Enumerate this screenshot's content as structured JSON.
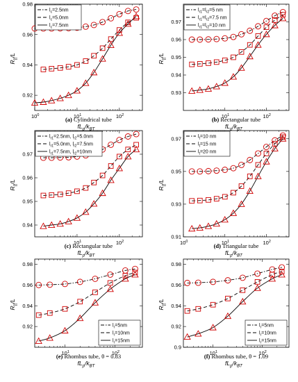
{
  "colors": {
    "marker": "#d00000",
    "curve": "#000000",
    "axis": "#000000"
  },
  "chart_data": [
    {
      "type": "line",
      "title": "",
      "caption_tag": "(a)",
      "caption_text": "Cylindrical tube",
      "xlabel": "fL_p/k_BT",
      "ylabel": "R_||/L",
      "xscale": "log",
      "xlim": [
        1,
        350
      ],
      "ylim": [
        0.91,
        0.98
      ],
      "yticks": [
        0.92,
        0.94,
        0.96,
        0.98
      ],
      "yticks_labels": [
        "0.92",
        "0.94",
        "0.96",
        "0.98"
      ],
      "xticks": [
        1,
        10,
        100
      ],
      "xticks_labels": [
        "10^0",
        "10^1",
        "10^2"
      ],
      "legend_position": "top-left",
      "series": [
        {
          "legend": "l_c=2.5nm",
          "line": "dashdot",
          "marker": "circle",
          "x": [
            1.0,
            1.6,
            2.5,
            4,
            6.3,
            10,
            16,
            25,
            40,
            63,
            100,
            160,
            250
          ],
          "y": [
            0.964,
            0.964,
            0.964,
            0.9641,
            0.9642,
            0.9645,
            0.9652,
            0.9663,
            0.9682,
            0.9707,
            0.9734,
            0.9755,
            0.9765
          ]
        },
        {
          "legend": "l_c=5.0nm",
          "line": "dashed",
          "marker": "square",
          "x": [
            1.6,
            2.5,
            4,
            6.3,
            10,
            16,
            25,
            40,
            63,
            100,
            160,
            250
          ],
          "y": [
            0.937,
            0.9375,
            0.938,
            0.9388,
            0.94,
            0.9425,
            0.946,
            0.951,
            0.957,
            0.963,
            0.968,
            0.971
          ]
        },
        {
          "legend": "l_c=7.5nm",
          "line": "solid",
          "marker": "triangle",
          "x": [
            1.0,
            1.6,
            2.5,
            4,
            6.3,
            10,
            16,
            25,
            40,
            63,
            100,
            160,
            250
          ],
          "y": [
            0.915,
            0.9155,
            0.9165,
            0.918,
            0.92,
            0.923,
            0.928,
            0.935,
            0.944,
            0.953,
            0.961,
            0.967,
            0.972
          ]
        }
      ]
    },
    {
      "type": "line",
      "title": "",
      "caption_tag": "(b)",
      "caption_text": "Rectangular tube",
      "xlabel": "fL_p/k_BT",
      "ylabel": "R_||/L",
      "xscale": "log",
      "xlim": [
        1,
        350
      ],
      "ylim": [
        0.92,
        0.98
      ],
      "yticks": [
        0.93,
        0.94,
        0.95,
        0.96,
        0.97
      ],
      "yticks_labels": [
        "0.93",
        "0.94",
        "0.95",
        "0.96",
        "0.97"
      ],
      "xticks": [
        10,
        100
      ],
      "xticks_labels": [
        "10^1",
        "10^2"
      ],
      "legend_position": "top-left",
      "series": [
        {
          "legend": "l_r1=l_r2=5 nm",
          "line": "dashdot",
          "marker": "circle",
          "x": [
            1.6,
            2.5,
            4,
            6.3,
            10,
            16,
            25,
            40,
            63,
            100,
            160,
            250
          ],
          "y": [
            0.96,
            0.96,
            0.9601,
            0.9603,
            0.9607,
            0.9615,
            0.963,
            0.965,
            0.9675,
            0.9705,
            0.9735,
            0.9755
          ]
        },
        {
          "legend": "l_r1=l_r2=7.5 nm",
          "line": "dashed",
          "marker": "square",
          "x": [
            1.6,
            2.5,
            4,
            6.3,
            10,
            16,
            25,
            40,
            63,
            100,
            160,
            250
          ],
          "y": [
            0.946,
            0.9463,
            0.9467,
            0.9473,
            0.9483,
            0.95,
            0.953,
            0.957,
            0.962,
            0.967,
            0.971,
            0.974
          ]
        },
        {
          "legend": "l_r1=l_r2=10 nm",
          "line": "solid",
          "marker": "triangle",
          "x": [
            1.6,
            2.5,
            4,
            6.3,
            10,
            16,
            25,
            40,
            63,
            100,
            160,
            250
          ],
          "y": [
            0.931,
            0.9315,
            0.9322,
            0.9335,
            0.9355,
            0.939,
            0.944,
            0.9505,
            0.957,
            0.963,
            0.968,
            0.972
          ]
        }
      ]
    },
    {
      "type": "line",
      "title": "",
      "caption_tag": "(c)",
      "caption_text": "Rectangular tube",
      "xlabel": "fL_p/k_BT",
      "ylabel": "R_||/L",
      "xscale": "log",
      "xlim": [
        1,
        350
      ],
      "ylim": [
        0.935,
        0.98
      ],
      "yticks": [
        0.94,
        0.95,
        0.96,
        0.97
      ],
      "yticks_labels": [
        "0.94",
        "0.95",
        "0.96",
        "0.97"
      ],
      "xticks": [
        10,
        100
      ],
      "xticks_labels": [
        "10^1",
        "10^2"
      ],
      "legend_position": "top-left",
      "series": [
        {
          "legend": "l_r1=2.5nm, l_r2=5.0nm",
          "line": "dashdot",
          "marker": "circle",
          "x": [
            1.6,
            2.5,
            4,
            6.3,
            10,
            16,
            25,
            40,
            63,
            100,
            160,
            250
          ],
          "y": [
            0.9685,
            0.9685,
            0.9686,
            0.9687,
            0.969,
            0.9695,
            0.9705,
            0.972,
            0.974,
            0.976,
            0.9775,
            0.9785
          ]
        },
        {
          "legend": "l_r1=5.0nm, l_r2=7.5nm",
          "line": "dashed",
          "marker": "square",
          "x": [
            1.6,
            2.5,
            4,
            6.3,
            10,
            16,
            25,
            40,
            63,
            100,
            160,
            250
          ],
          "y": [
            0.9525,
            0.9527,
            0.953,
            0.9535,
            0.9543,
            0.9557,
            0.958,
            0.961,
            0.965,
            0.969,
            0.972,
            0.974
          ]
        },
        {
          "legend": "l_r1=7.5nm, l_r2=10nm",
          "line": "solid",
          "marker": "triangle",
          "x": [
            1.6,
            2.5,
            4,
            6.3,
            10,
            16,
            25,
            40,
            63,
            100,
            160,
            250
          ],
          "y": [
            0.9395,
            0.94,
            0.9405,
            0.9415,
            0.943,
            0.9455,
            0.949,
            0.9535,
            0.959,
            0.964,
            0.969,
            0.972
          ]
        }
      ]
    },
    {
      "type": "line",
      "title": "",
      "caption_tag": "(d)",
      "caption_text": "Triangular tube",
      "xlabel": "fL_p/k_BT",
      "ylabel": "R_||/L",
      "xscale": "log",
      "xlim": [
        1,
        350
      ],
      "ylim": [
        0.91,
        0.975
      ],
      "yticks": [
        0.91,
        0.93,
        0.95,
        0.97
      ],
      "yticks_labels": [
        "0.91",
        "0.93",
        "0.95",
        "0.97"
      ],
      "xticks": [
        1,
        10,
        100
      ],
      "xticks_labels": [
        "10^0",
        "10^1",
        "10^2"
      ],
      "legend_position": "top-left",
      "series": [
        {
          "legend": "l_t=10 nm",
          "line": "dashdot",
          "marker": "circle",
          "x": [
            1.6,
            2.5,
            4,
            6.3,
            10,
            16,
            25,
            40,
            63,
            100,
            160,
            250
          ],
          "y": [
            0.95,
            0.95,
            0.9502,
            0.9505,
            0.951,
            0.952,
            0.954,
            0.957,
            0.961,
            0.965,
            0.969,
            0.972
          ]
        },
        {
          "legend": "l_t=15 nm",
          "line": "dashed",
          "marker": "square",
          "x": [
            1.6,
            2.5,
            4,
            6.3,
            10,
            16,
            25,
            40,
            63,
            100,
            160,
            250
          ],
          "y": [
            0.932,
            0.9322,
            0.9326,
            0.9333,
            0.9345,
            0.937,
            0.941,
            0.947,
            0.954,
            0.961,
            0.967,
            0.971
          ]
        },
        {
          "legend": "l_t=20 nm",
          "line": "solid",
          "marker": "triangle",
          "x": [
            1.6,
            2.5,
            4,
            6.3,
            10,
            16,
            25,
            40,
            63,
            100,
            160,
            250
          ],
          "y": [
            0.915,
            0.9155,
            0.9165,
            0.918,
            0.9205,
            0.9245,
            0.93,
            0.938,
            0.947,
            0.956,
            0.964,
            0.97
          ]
        }
      ]
    },
    {
      "type": "line",
      "title": "",
      "caption_tag": "(e)",
      "caption_text": "Rhombus tube, θ = 0.83",
      "xlabel": "fL_p/k_BT",
      "ylabel": "R_||/L",
      "xscale": "log",
      "xlim": [
        2.5,
        350
      ],
      "ylim": [
        0.9,
        0.985
      ],
      "yticks": [
        0.92,
        0.94,
        0.96,
        0.98
      ],
      "yticks_labels": [
        "0.92",
        "0.94",
        "0.96",
        "0.98"
      ],
      "xticks": [
        10,
        100
      ],
      "xticks_labels": [
        "10^1",
        "10^2"
      ],
      "legend_position": "lower-right",
      "series": [
        {
          "legend": "l_r=5nm",
          "line": "dashdot",
          "marker": "circle",
          "x": [
            3,
            5,
            10,
            20,
            40,
            80,
            160,
            250
          ],
          "y": [
            0.96,
            0.9603,
            0.961,
            0.963,
            0.966,
            0.97,
            0.974,
            0.9755
          ]
        },
        {
          "legend": "l_r=10nm",
          "line": "dashed",
          "marker": "square",
          "x": [
            3,
            5,
            10,
            20,
            40,
            80,
            160,
            250
          ],
          "y": [
            0.931,
            0.933,
            0.937,
            0.944,
            0.953,
            0.962,
            0.969,
            0.972
          ]
        },
        {
          "legend": "l_r=15nm",
          "line": "solid",
          "marker": "triangle",
          "x": [
            3,
            5,
            10,
            20,
            40,
            80,
            160,
            250
          ],
          "y": [
            0.906,
            0.909,
            0.916,
            0.928,
            0.943,
            0.956,
            0.966,
            0.97
          ]
        }
      ]
    },
    {
      "type": "line",
      "title": "",
      "caption_tag": "(f)",
      "caption_text": "Rhombus tube, θ = 1.09",
      "xlabel": "fL_p/k_BT",
      "ylabel": "R_||/L",
      "xscale": "log",
      "xlim": [
        2.5,
        350
      ],
      "ylim": [
        0.9,
        0.985
      ],
      "yticks": [
        0.9,
        0.92,
        0.94,
        0.96,
        0.98
      ],
      "yticks_labels": [
        "0.9",
        "0.92",
        "0.94",
        "0.96",
        "0.98"
      ],
      "xticks": [
        10,
        100
      ],
      "xticks_labels": [
        "10^1",
        "10^2"
      ],
      "legend_position": "lower-right",
      "series": [
        {
          "legend": "l_r=5nm",
          "line": "dashdot",
          "marker": "circle",
          "x": [
            3,
            5,
            10,
            20,
            40,
            80,
            160,
            250
          ],
          "y": [
            0.962,
            0.9622,
            0.963,
            0.9645,
            0.967,
            0.971,
            0.975,
            0.977
          ]
        },
        {
          "legend": "l_r=10nm",
          "line": "dashed",
          "marker": "square",
          "x": [
            3,
            5,
            10,
            20,
            40,
            80,
            160,
            250
          ],
          "y": [
            0.935,
            0.937,
            0.941,
            0.947,
            0.955,
            0.963,
            0.97,
            0.973
          ]
        },
        {
          "legend": "l_r=15nm",
          "line": "solid",
          "marker": "triangle",
          "x": [
            3,
            5,
            10,
            20,
            40,
            80,
            160,
            250
          ],
          "y": [
            0.91,
            0.913,
            0.919,
            0.93,
            0.944,
            0.957,
            0.966,
            0.97
          ]
        }
      ]
    }
  ]
}
